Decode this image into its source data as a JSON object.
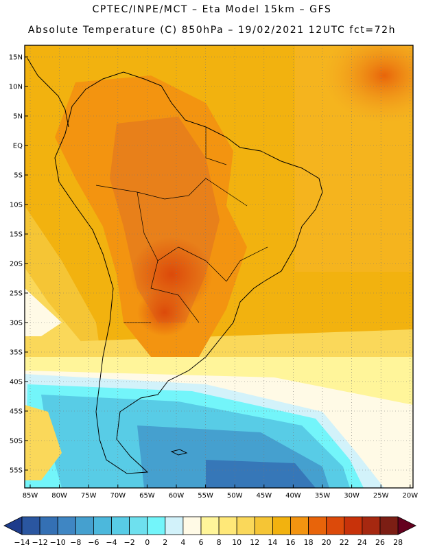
{
  "header": {
    "line1": "CPTEC/INPE/MCT –  Eta Model 15km – GFS",
    "line2": "Absolute Temperature (C) 850hPa – 19/02/2021 12UTC fct=72h"
  },
  "map": {
    "lat_labels": [
      "15N",
      "10N",
      "5N",
      "EQ",
      "5S",
      "10S",
      "15S",
      "20S",
      "25S",
      "30S",
      "35S",
      "40S",
      "45S",
      "50S",
      "55S"
    ],
    "lon_labels": [
      "85W",
      "80W",
      "75W",
      "70W",
      "65W",
      "60W",
      "55W",
      "50W",
      "45W",
      "40W",
      "35W",
      "30W",
      "25W",
      "20W"
    ]
  },
  "colorbar": {
    "colors": [
      "#1e3c8c",
      "#2a56a0",
      "#3470b4",
      "#3f86c3",
      "#45a0cf",
      "#4cb8dc",
      "#58cce6",
      "#6ee0ee",
      "#73f5fa",
      "#d2f2fa",
      "#fffae6",
      "#fff59a",
      "#ffe878",
      "#fad85a",
      "#f5c535",
      "#f2b20f",
      "#f39410",
      "#e8640a",
      "#dc4a0a",
      "#c8320a",
      "#a62810",
      "#7c1e14",
      "#64001e"
    ],
    "labels": [
      "-14",
      "-12",
      "-10",
      "-8",
      "-6",
      "-4",
      "-2",
      "0",
      "2",
      "4",
      "6",
      "8",
      "10",
      "12",
      "14",
      "16",
      "18",
      "20",
      "22",
      "24",
      "26",
      "28"
    ]
  }
}
